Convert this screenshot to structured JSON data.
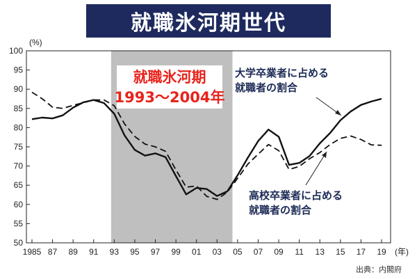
{
  "title": "就職氷河期世代",
  "colors": {
    "banner": "#1e2a5e",
    "band": "#bfbfbf",
    "highlight": "#e8231c",
    "annotation": "#1c2a55",
    "line": "#111111"
  },
  "source": "出典：内閣府",
  "chart_data": {
    "type": "line",
    "yunit": "(%)",
    "xunit": "(年)",
    "xlim": [
      1985,
      2019
    ],
    "ylim": [
      50,
      100
    ],
    "yticks": [
      50,
      55,
      60,
      65,
      70,
      75,
      80,
      85,
      90,
      95,
      100
    ],
    "xticks": [
      {
        "v": 1985,
        "label": "1985"
      },
      {
        "v": 1987,
        "label": "87"
      },
      {
        "v": 1989,
        "label": "89"
      },
      {
        "v": 1991,
        "label": "91"
      },
      {
        "v": 1993,
        "label": "93"
      },
      {
        "v": 1995,
        "label": "95"
      },
      {
        "v": 1997,
        "label": "97"
      },
      {
        "v": 1999,
        "label": "99"
      },
      {
        "v": 2001,
        "label": "01"
      },
      {
        "v": 2003,
        "label": "03"
      },
      {
        "v": 2005,
        "label": "05"
      },
      {
        "v": 2007,
        "label": "07"
      },
      {
        "v": 2009,
        "label": "09"
      },
      {
        "v": 2011,
        "label": "11"
      },
      {
        "v": 2013,
        "label": "13"
      },
      {
        "v": 2015,
        "label": "15"
      },
      {
        "v": 2017,
        "label": "17"
      },
      {
        "v": 2019,
        "label": "19"
      }
    ],
    "grid": false,
    "highlight_band": {
      "from": 1992.7,
      "to": 2004.5,
      "label_line1": "就職氷河期",
      "label_line2": "1993～2004年"
    },
    "x": [
      1985,
      1986,
      1987,
      1988,
      1989,
      1990,
      1991,
      1992,
      1993,
      1994,
      1995,
      1996,
      1997,
      1998,
      1999,
      2000,
      2001,
      2002,
      2003,
      2004,
      2005,
      2006,
      2007,
      2008,
      2009,
      2010,
      2011,
      2012,
      2013,
      2014,
      2015,
      2016,
      2017,
      2018,
      2019
    ],
    "series": [
      {
        "name": "大学卒業者に占める就職者の割合",
        "style": "solid",
        "values": [
          82.2,
          82.6,
          82.4,
          83.2,
          85.2,
          86.6,
          87.2,
          86.4,
          83.6,
          78.0,
          74.2,
          72.7,
          73.3,
          72.3,
          67.4,
          62.6,
          64.3,
          64.0,
          62.2,
          63.4,
          67.6,
          72.2,
          76.5,
          79.5,
          77.6,
          70.3,
          70.8,
          72.6,
          75.9,
          78.6,
          81.9,
          84.2,
          85.9,
          86.8,
          87.5
        ]
      },
      {
        "name": "高校卒業者に占める就職者の割合",
        "style": "dashed",
        "values": [
          89.2,
          87.5,
          85.3,
          85.0,
          85.8,
          86.5,
          87.2,
          87.2,
          85.7,
          81.0,
          77.7,
          75.7,
          75.0,
          73.8,
          69.0,
          64.5,
          64.8,
          62.1,
          61.3,
          63.2,
          66.8,
          70.5,
          73.1,
          75.6,
          74.0,
          69.1,
          69.9,
          71.9,
          73.5,
          75.6,
          77.2,
          77.8,
          76.9,
          75.5,
          75.4
        ]
      }
    ],
    "annotations": [
      {
        "series": 0,
        "line1": "大学卒業者に占める",
        "line2": "就職者の割合"
      },
      {
        "series": 1,
        "line1": "高校卒業者に占める",
        "line2": "就職者の割合"
      }
    ]
  }
}
